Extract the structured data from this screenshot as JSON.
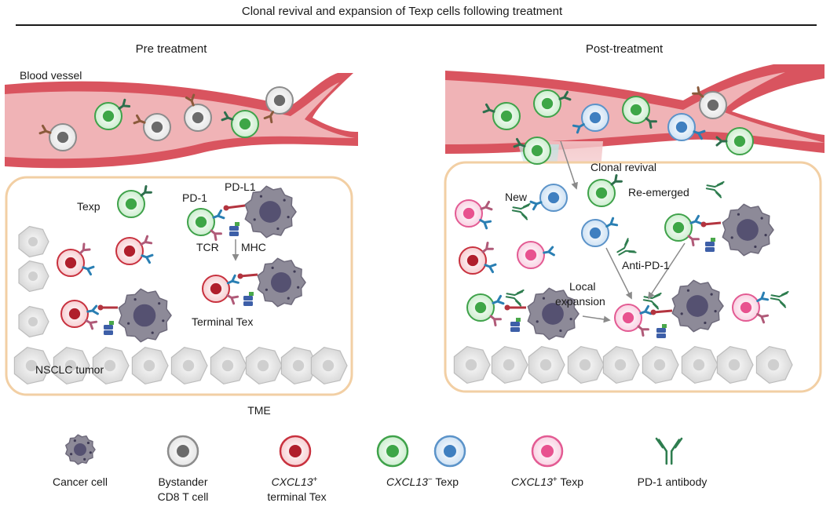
{
  "title": "Clonal revival and expansion of Texp cells following treatment",
  "pre": {
    "header": "Pre treatment",
    "blood_vessel": "Blood vessel",
    "texp": "Texp",
    "pd1": "PD-1",
    "pdl1": "PD-L1",
    "tcr": "TCR",
    "mhc": "MHC",
    "terminal_tex": "Terminal Tex",
    "tumor": "NSCLC tumor"
  },
  "post": {
    "header": "Post-treatment",
    "clonal_revival": "Clonal revival",
    "new": "New",
    "re_emerged": "Re-emerged",
    "anti_pd1": "Anti-PD-1",
    "local": "Local",
    "expansion": "expansion"
  },
  "tme": "TME",
  "legend": {
    "cancer_cell": "Cancer cell",
    "bystander_1": "Bystander",
    "bystander_2": "CD8 T cell",
    "terminal_gene": "CXCL13",
    "terminal_sup": "+",
    "terminal_2": "terminal Tex",
    "neg_gene": "CXCL13",
    "neg_sup": "−",
    "neg_suffix": " Texp",
    "pos_gene": "CXCL13",
    "pos_sup": "+",
    "pos_suffix": " Texp",
    "antibody": "PD-1 antibody"
  },
  "colors": {
    "vessel_outer": "#d9545f",
    "vessel_inner": "#f0b3b6",
    "tme_border": "#f2cfa4",
    "cancer_body": "#8d8a98",
    "cancer_nucleus": "#555171",
    "bystander_ring": "#8c8c8c",
    "bystander_nucleus": "#6b6b6b",
    "terminal_ring": "#c8313e",
    "terminal_nucleus": "#b01f2c",
    "neg_texp_ring": "#3fa24a",
    "neg_texp_nucleus": "#3ea647",
    "blue_texp_ring": "#5b93c9",
    "blue_texp_nucleus": "#3f7fc0",
    "pos_texp_ring": "#e35b93",
    "pos_texp_nucleus": "#e8528f",
    "antibody": "#2e7d4f"
  }
}
